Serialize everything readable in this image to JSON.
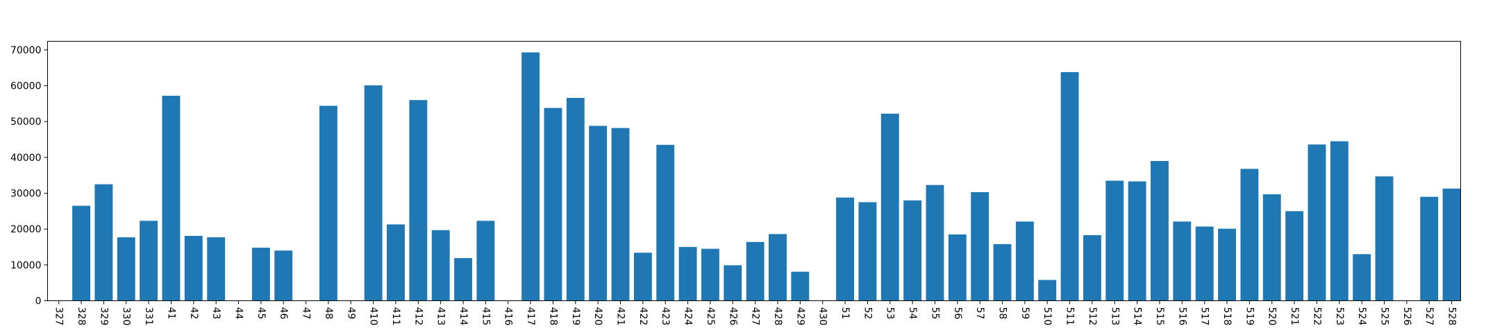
{
  "chart_data": {
    "type": "bar",
    "title": "",
    "xlabel": "",
    "ylabel": "",
    "categories": [
      "327",
      "328",
      "329",
      "330",
      "331",
      "41",
      "42",
      "43",
      "44",
      "45",
      "46",
      "47",
      "48",
      "49",
      "410",
      "411",
      "412",
      "413",
      "414",
      "415",
      "416",
      "417",
      "418",
      "419",
      "420",
      "421",
      "422",
      "423",
      "424",
      "425",
      "426",
      "427",
      "428",
      "429",
      "430",
      "51",
      "52",
      "53",
      "54",
      "55",
      "56",
      "57",
      "58",
      "59",
      "510",
      "511",
      "512",
      "513",
      "514",
      "515",
      "516",
      "517",
      "518",
      "519",
      "520",
      "521",
      "522",
      "523",
      "524",
      "525",
      "526",
      "527",
      "528"
    ],
    "values": [
      0,
      26500,
      32500,
      17700,
      22300,
      57200,
      18100,
      17700,
      0,
      14800,
      14000,
      0,
      54400,
      0,
      60100,
      21300,
      56000,
      19700,
      11900,
      22300,
      0,
      69300,
      53800,
      56600,
      48800,
      48200,
      13400,
      43500,
      15000,
      14500,
      9900,
      16400,
      18600,
      8100,
      0,
      28800,
      27500,
      52200,
      28000,
      32300,
      18500,
      30300,
      15800,
      22100,
      5800,
      63800,
      18300,
      33500,
      33300,
      39000,
      22100,
      20700,
      20100,
      36800,
      29700,
      25000,
      43600,
      44500,
      13000,
      34700,
      0,
      29000,
      31300
    ],
    "ylim": [
      0,
      72400
    ],
    "yticks": [
      0,
      10000,
      20000,
      30000,
      40000,
      50000,
      60000,
      70000
    ],
    "ytick_labels": [
      "0",
      "10000",
      "20000",
      "30000",
      "40000",
      "50000",
      "60000",
      "70000"
    ],
    "bar_color": "#1f77b4",
    "grid": false,
    "legend": "none"
  }
}
